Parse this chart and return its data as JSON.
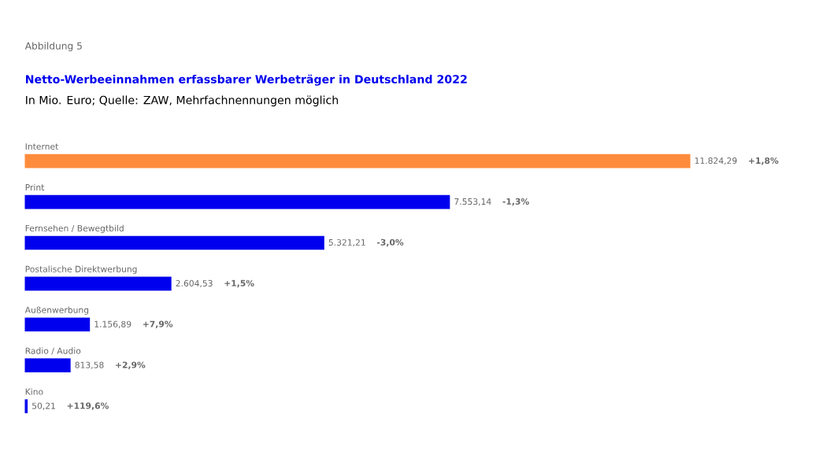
{
  "chart_data": {
    "type": "bar",
    "orientation": "horizontal",
    "title": "Netto-Werbeeinnahmen erfassbarer Werbeträger in Deutschland 2022",
    "subtitle": "In Mio. Euro; Quelle: ZAW, Mehrfachnennungen möglich",
    "categories": [
      "Internet",
      "Print",
      "Fernsehen / Bewegtbild",
      "Postalische Direktwerbung",
      "Außenwerbung",
      "Radio / Audio",
      "Kino"
    ],
    "values": [
      11824.29,
      7553.14,
      5321.21,
      2604.53,
      1156.89,
      813.58,
      50.21
    ],
    "value_labels": [
      "11.824,29",
      "7.553,14",
      "5.321,21",
      "2.604,53",
      "1.156,89",
      "813,58",
      "50,21"
    ],
    "colors": [
      "#ff8c3c",
      "#0000ee",
      "#0000ee",
      "#0000ee",
      "#0000ee",
      "#0000ee",
      "#0000ee"
    ],
    "annotations": [
      "Abbildung 5",
      "+1,8%",
      "-1,3%",
      "-3,0%",
      "+1,5%",
      "+7,9%",
      "+2,9%",
      "+119,6%"
    ]
  }
}
